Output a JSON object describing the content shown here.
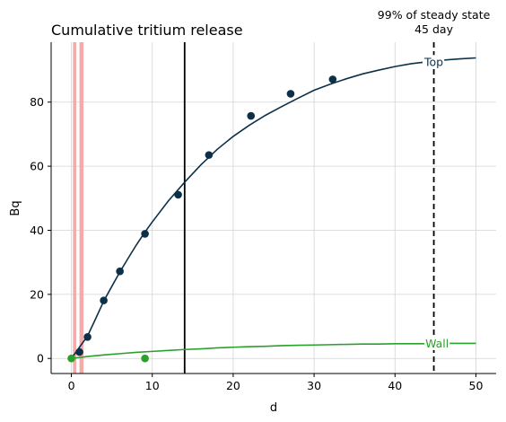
{
  "chart_data": {
    "type": "line",
    "title": "Cumulative tritium release",
    "xlabel": "d",
    "ylabel": "Bq",
    "xlim": [
      -2.5,
      52.5
    ],
    "ylim": [
      -4.7,
      98.7
    ],
    "xticks": [
      0,
      10,
      20,
      30,
      40,
      50
    ],
    "yticks": [
      0,
      20,
      40,
      60,
      80
    ],
    "grid": true,
    "legend": "none",
    "colors": {
      "top": "#0d3049",
      "wall": "#2ca02c",
      "band": "#f4a6a6",
      "ref_line": "#000000"
    },
    "series": [
      {
        "name": "Top",
        "label": "Top",
        "label_at": [
          44.8,
          92.6
        ],
        "curve": {
          "x": [
            0,
            1,
            2,
            3,
            4,
            5,
            6,
            7,
            8,
            9,
            10,
            12,
            14,
            16,
            18,
            20,
            22,
            24,
            26,
            28,
            30,
            32,
            34,
            36,
            38,
            40,
            42,
            44,
            46,
            48,
            50
          ],
          "y": [
            0,
            3.5,
            7.0,
            12.4,
            17.9,
            22.5,
            27.0,
            31.2,
            35.3,
            39.1,
            42.6,
            49.2,
            55.0,
            60.4,
            65.2,
            69.3,
            72.8,
            75.9,
            78.6,
            81.2,
            83.7,
            85.6,
            87.3,
            88.8,
            90.0,
            91.1,
            92.0,
            92.6,
            93.1,
            93.5,
            93.8
          ]
        },
        "points": {
          "x": [
            1,
            2,
            4,
            6,
            9.1,
            13.2,
            17,
            22.2,
            27.1,
            32.3
          ],
          "y": [
            2,
            6.7,
            18.1,
            27.2,
            38.9,
            51.1,
            63.5,
            75.7,
            82.6,
            87.1
          ]
        }
      },
      {
        "name": "Wall",
        "label": "Wall",
        "label_at": [
          45.2,
          4.7
        ],
        "curve": {
          "x": [
            0,
            2,
            4,
            6,
            8,
            10,
            12,
            14,
            16,
            18,
            20,
            22,
            24,
            26,
            28,
            30,
            32,
            34,
            36,
            38,
            40,
            42,
            44,
            46,
            48,
            50
          ],
          "y": [
            0,
            0.6,
            1.1,
            1.5,
            1.9,
            2.2,
            2.5,
            2.8,
            3.0,
            3.3,
            3.5,
            3.7,
            3.8,
            4.0,
            4.1,
            4.2,
            4.3,
            4.4,
            4.5,
            4.5,
            4.6,
            4.6,
            4.6,
            4.7,
            4.7,
            4.7
          ]
        },
        "points": {
          "x": [
            0,
            9.1
          ],
          "y": [
            0,
            0
          ]
        }
      }
    ],
    "bands": [
      {
        "x": [
          0.2,
          0.6
        ]
      },
      {
        "x": [
          1.0,
          1.5
        ]
      }
    ],
    "vlines": [
      {
        "x": 14,
        "style": "solid"
      },
      {
        "x": 44.8,
        "style": "dashed"
      }
    ],
    "annotations": [
      {
        "lines": [
          "99% of steady state",
          "45 day"
        ],
        "x": 44.8
      }
    ]
  }
}
